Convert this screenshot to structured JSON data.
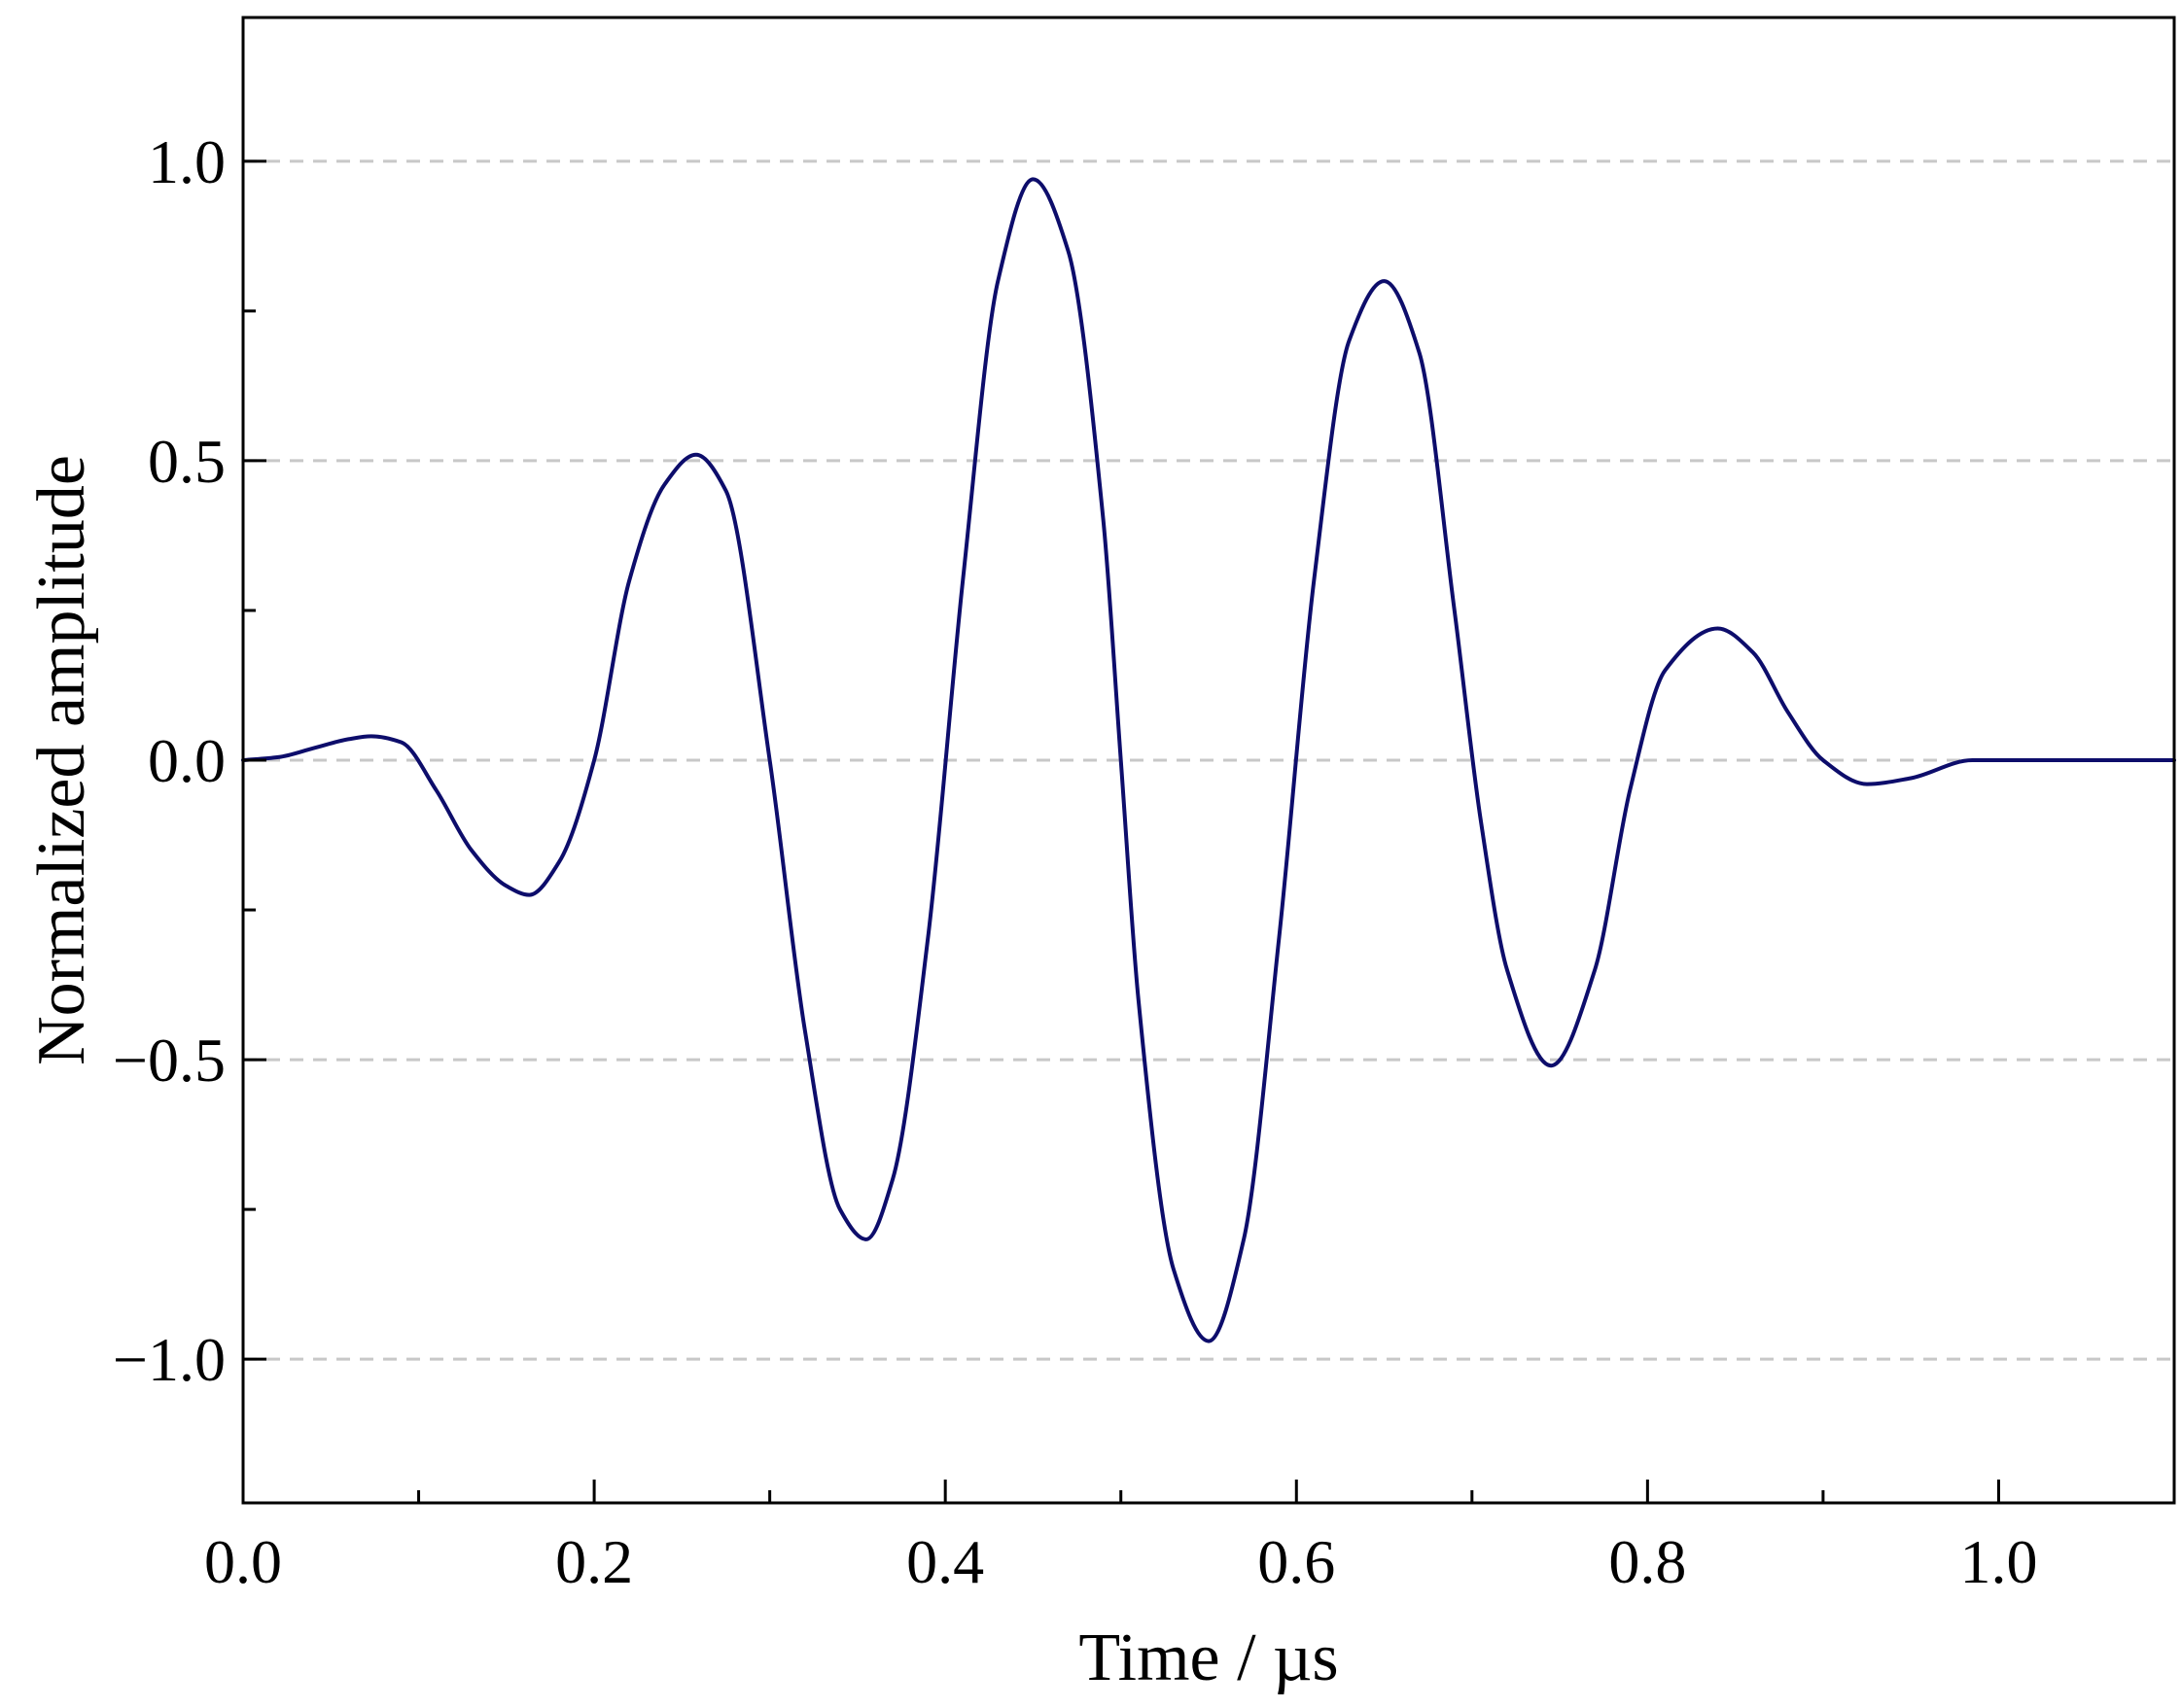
{
  "chart_data": {
    "type": "line",
    "title": "",
    "xlabel": "Time / µs",
    "ylabel": "Normalized amplitude",
    "xlim": [
      0.0,
      1.1
    ],
    "ylim": [
      -1.24,
      1.24
    ],
    "x_ticks": [
      0.0,
      0.2,
      0.4,
      0.6,
      0.8,
      1.0
    ],
    "x_tick_labels": [
      "0.0",
      "0.2",
      "0.4",
      "0.6",
      "0.8",
      "1.0"
    ],
    "x_minor_ticks": [
      0.1,
      0.3,
      0.5,
      0.7,
      0.9
    ],
    "y_ticks": [
      -1.0,
      -0.5,
      0.0,
      0.5,
      1.0
    ],
    "y_tick_labels": [
      "−1.0",
      "−0.5",
      "0.0",
      "0.5",
      "1.0"
    ],
    "y_minor_ticks": [
      -0.75,
      -0.25,
      0.25,
      0.75
    ],
    "grid": "horizontal dashed at major y ticks",
    "legend": "none",
    "line_color": "#0d0d6b",
    "grid_color": "#c8c8c8",
    "series": [
      {
        "x": [
          0.0,
          0.02,
          0.04,
          0.06,
          0.073,
          0.09,
          0.11,
          0.13,
          0.15,
          0.163,
          0.18,
          0.2,
          0.22,
          0.24,
          0.258,
          0.275,
          0.3,
          0.32,
          0.34,
          0.355,
          0.37,
          0.39,
          0.41,
          0.43,
          0.45,
          0.47,
          0.49,
          0.5,
          0.51,
          0.53,
          0.55,
          0.57,
          0.59,
          0.61,
          0.63,
          0.65,
          0.67,
          0.69,
          0.705,
          0.72,
          0.745,
          0.77,
          0.79,
          0.81,
          0.84,
          0.86,
          0.88,
          0.9,
          0.925,
          0.95,
          0.985,
          1.0,
          1.1
        ],
        "y": [
          0.0,
          0.005,
          0.02,
          0.035,
          0.04,
          0.03,
          -0.05,
          -0.15,
          -0.21,
          -0.225,
          -0.17,
          0.0,
          0.3,
          0.46,
          0.51,
          0.45,
          0.0,
          -0.45,
          -0.75,
          -0.8,
          -0.7,
          -0.3,
          0.3,
          0.8,
          0.97,
          0.85,
          0.4,
          0.0,
          -0.4,
          -0.85,
          -0.97,
          -0.8,
          -0.3,
          0.3,
          0.7,
          0.8,
          0.68,
          0.25,
          -0.1,
          -0.35,
          -0.51,
          -0.35,
          -0.05,
          0.15,
          0.22,
          0.18,
          0.08,
          0.0,
          -0.04,
          -0.03,
          0.0,
          0.0,
          0.0
        ]
      }
    ]
  }
}
